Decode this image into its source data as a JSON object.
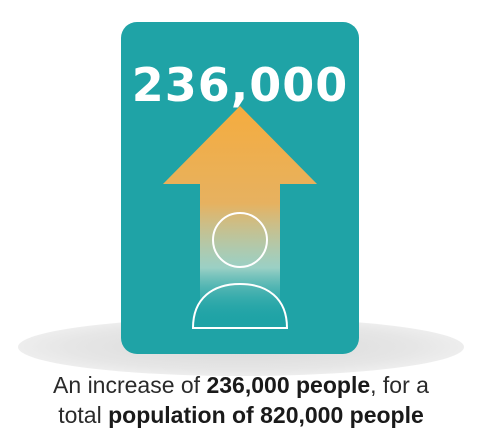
{
  "card": {
    "number": "236,000",
    "color": "#1fa3a6",
    "arrow_color_top": "#f5ac3e",
    "icon": "person-icon",
    "arrow_icon": "up-arrow-icon"
  },
  "caption": {
    "line1_pre": "An increase of ",
    "line1_bold": "236,000 people",
    "line1_post": ", for a",
    "line2_pre": "total ",
    "line2_bold": "population of 820,000 people"
  }
}
